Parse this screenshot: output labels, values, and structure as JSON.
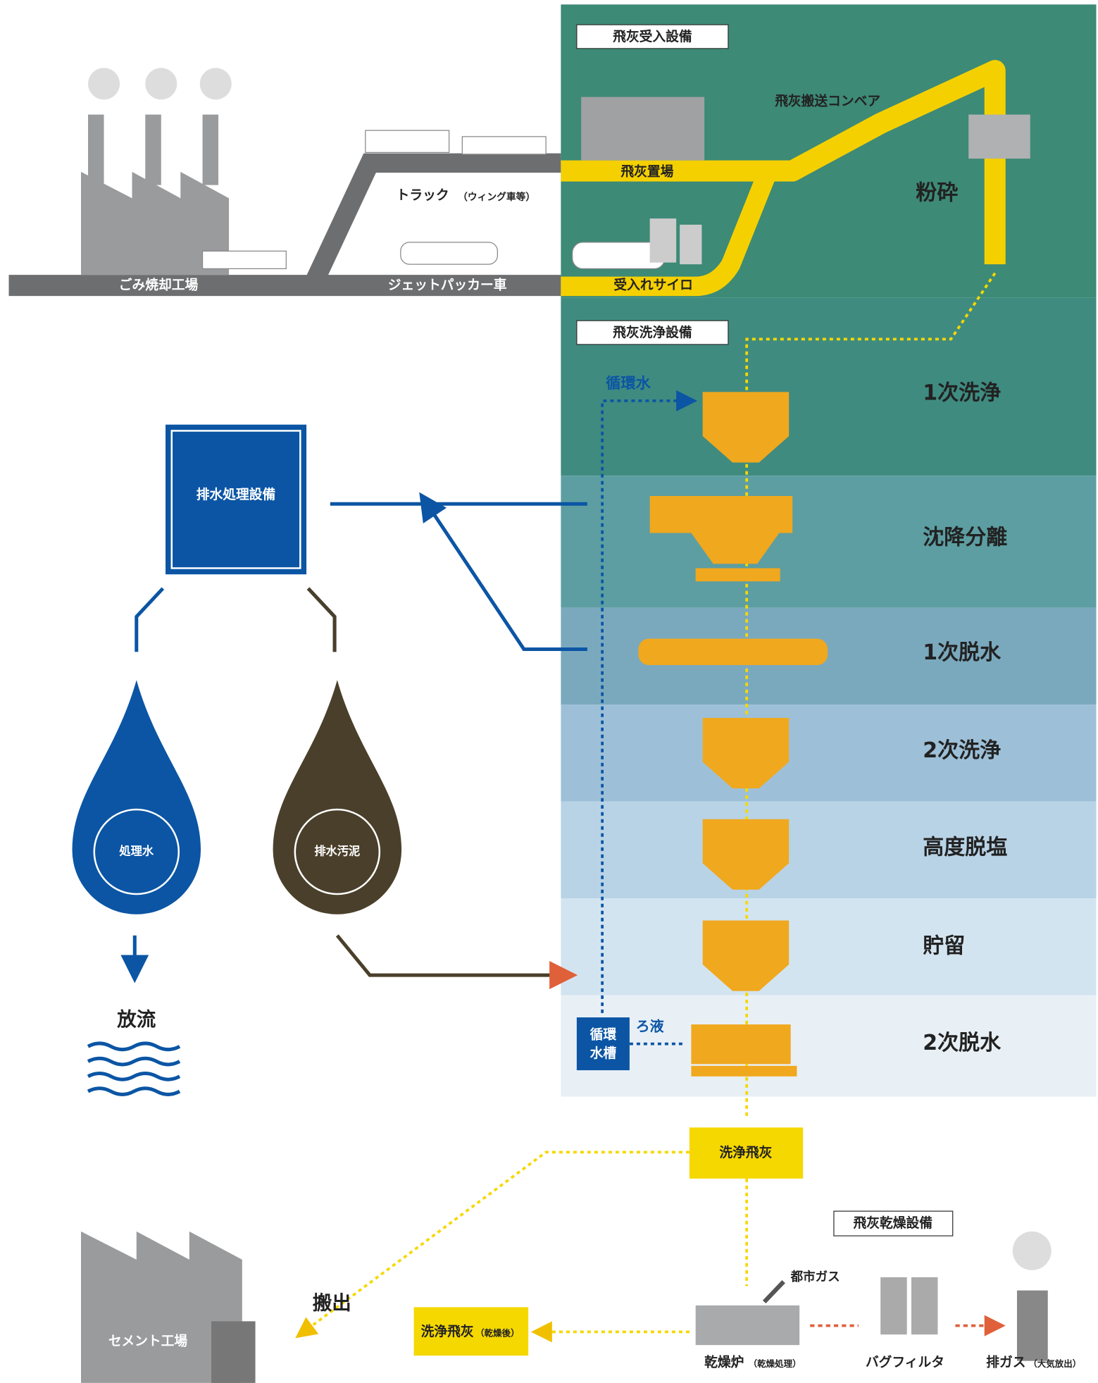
{
  "sections": {
    "receiving": "飛灰受入設備",
    "washing": "飛灰洗浄設備",
    "drying": "飛灰乾燥設備"
  },
  "places": {
    "incinerator": "ごみ焼却工場",
    "cement": "セメント工場"
  },
  "vehicles": {
    "truck": "トラック",
    "truck_note": "（ウィング車等）",
    "jet": "ジェットパッカー車"
  },
  "receiving": {
    "yard": "飛灰置場",
    "silo": "受入れサイロ",
    "conveyor": "飛灰搬送コンベア",
    "crush": "粉砕"
  },
  "steps": [
    "1次洗浄",
    "沈降分離",
    "1次脱水",
    "2次洗浄",
    "高度脱塩",
    "貯留",
    "2次脱水"
  ],
  "water": {
    "recycle": "循環水",
    "filtrate": "ろ液",
    "tank": [
      "循環",
      "水槽"
    ],
    "treatment": "排水処理設備",
    "treated": "処理水",
    "sludge": "排水汚泥",
    "discharge": "放流"
  },
  "products": {
    "washed": "洗浄飛灰",
    "dried": "洗浄飛灰",
    "dried_note": "（乾燥後）",
    "carry": "搬出"
  },
  "drying": {
    "dryer": "乾燥炉",
    "dryer_note": "（乾燥処理）",
    "gas": "都市ガス",
    "bag": "バグフィルタ",
    "exhaust": "排ガス",
    "exhaust_note": "（大気放出）"
  }
}
